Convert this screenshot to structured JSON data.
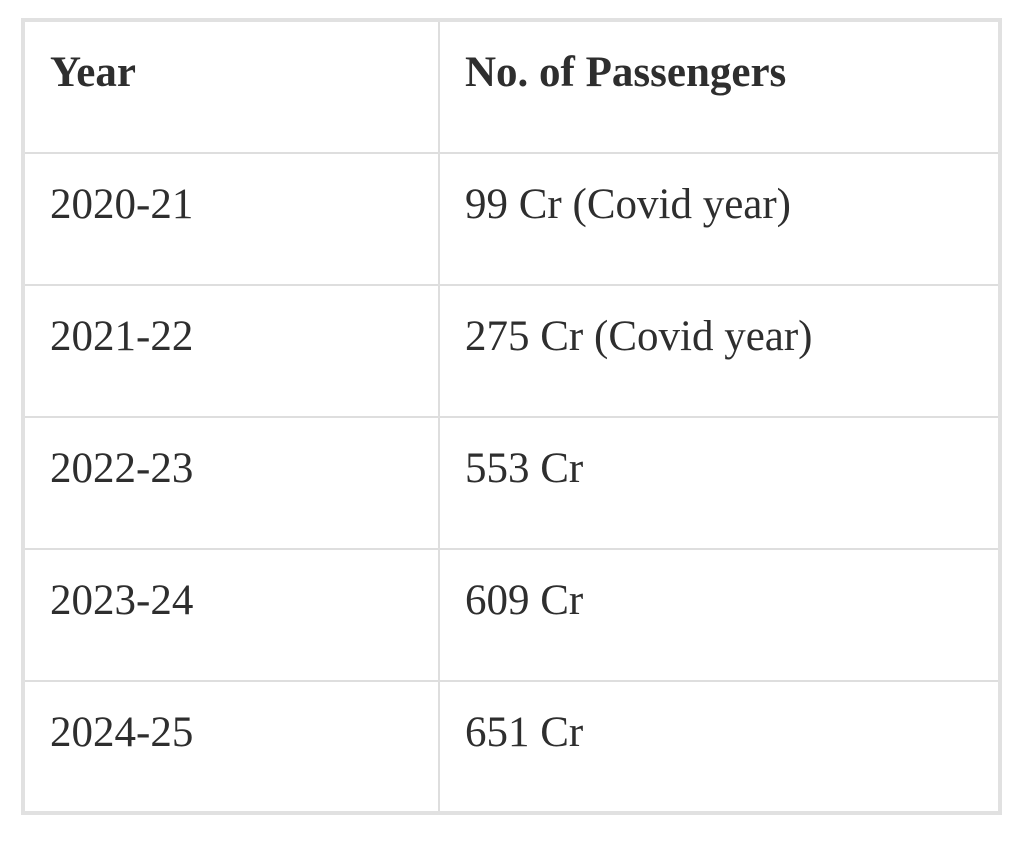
{
  "table": {
    "headers": {
      "year": "Year",
      "passengers": "No. of Passengers"
    },
    "rows": [
      {
        "year": "2020-21",
        "passengers": "99 Cr (Covid year)"
      },
      {
        "year": "2021-22",
        "passengers": "275 Cr (Covid year)"
      },
      {
        "year": "2022-23",
        "passengers": "553 Cr"
      },
      {
        "year": "2023-24",
        "passengers": "609 Cr"
      },
      {
        "year": "2024-25",
        "passengers": "651 Cr"
      }
    ]
  },
  "colors": {
    "border": "#dedede",
    "outer_border": "#e1e1e1",
    "text": "#2e2e2e",
    "background": "#ffffff"
  },
  "chart_data": {
    "type": "table",
    "columns": [
      "Year",
      "No. of Passengers"
    ],
    "rows": [
      [
        "2020-21",
        "99 Cr (Covid year)"
      ],
      [
        "2021-22",
        "275 Cr (Covid year)"
      ],
      [
        "2022-23",
        "553 Cr"
      ],
      [
        "2023-24",
        "609 Cr"
      ],
      [
        "2024-25",
        "651 Cr"
      ]
    ],
    "categories": [
      "2020-21",
      "2021-22",
      "2022-23",
      "2023-24",
      "2024-25"
    ],
    "values": [
      99,
      275,
      553,
      609,
      651
    ],
    "ylabel": "No. of Passengers (Cr)"
  }
}
